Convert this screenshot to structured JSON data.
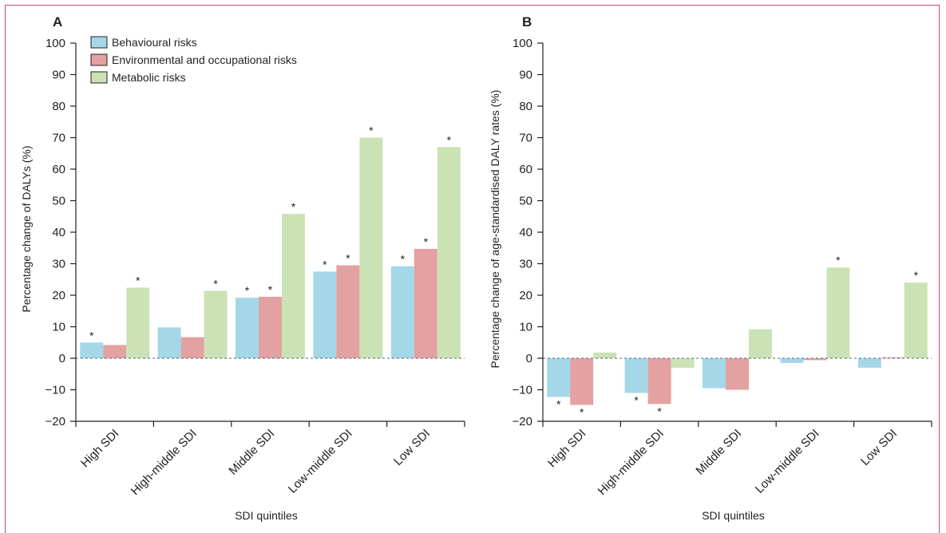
{
  "colors": {
    "behavioural": "#a4d8e8",
    "environmental": "#e4a1a1",
    "metabolic": "#cbe2b5",
    "axis": "#231f20",
    "zero_line": "#4a6b80",
    "border": "#c8467f"
  },
  "chart_data": [
    {
      "panel": "A",
      "type": "bar",
      "xlabel": "SDI quintiles",
      "ylabel": "Percentage change of DALYs (%)",
      "ylim": [
        -20,
        100
      ],
      "yticks": [
        -20,
        -10,
        0,
        10,
        20,
        30,
        40,
        50,
        60,
        70,
        80,
        90,
        100
      ],
      "categories": [
        "High SDI",
        "High-middle SDI",
        "Middle SDI",
        "Low-middle SDI",
        "Low SDI"
      ],
      "series": [
        {
          "name": "Behavioural risks",
          "values": [
            5,
            9.8,
            19.2,
            27.5,
            29.2
          ],
          "significant": [
            true,
            false,
            true,
            true,
            true
          ]
        },
        {
          "name": "Environmental and occupational risks",
          "values": [
            4.2,
            6.7,
            19.5,
            29.5,
            34.7
          ],
          "significant": [
            false,
            false,
            true,
            true,
            true
          ]
        },
        {
          "name": "Metabolic risks",
          "values": [
            22.4,
            21.4,
            45.8,
            70,
            67
          ],
          "significant": [
            true,
            true,
            true,
            true,
            true
          ]
        }
      ],
      "legend": "top-left",
      "grid": false
    },
    {
      "panel": "B",
      "type": "bar",
      "xlabel": "SDI quintiles",
      "ylabel": "Percentage change of age-standardised DALY rates (%)",
      "ylim": [
        -20,
        100
      ],
      "yticks": [
        -20,
        -10,
        0,
        10,
        20,
        30,
        40,
        50,
        60,
        70,
        80,
        90,
        100
      ],
      "categories": [
        "High SDI",
        "High-middle SDI",
        "Middle SDI",
        "Low-middle SDI",
        "Low SDI"
      ],
      "series": [
        {
          "name": "Behavioural risks",
          "values": [
            -12.3,
            -11,
            -9.5,
            -1.5,
            -3
          ],
          "significant": [
            true,
            true,
            false,
            false,
            false
          ]
        },
        {
          "name": "Environmental and occupational risks",
          "values": [
            -14.8,
            -14.5,
            -10,
            -0.6,
            0.3
          ],
          "significant": [
            true,
            true,
            false,
            false,
            false
          ]
        },
        {
          "name": "Metabolic risks",
          "values": [
            1.8,
            -3,
            9.2,
            28.8,
            24
          ],
          "significant": [
            false,
            false,
            false,
            true,
            true
          ]
        }
      ],
      "legend": "none",
      "grid": false
    }
  ]
}
